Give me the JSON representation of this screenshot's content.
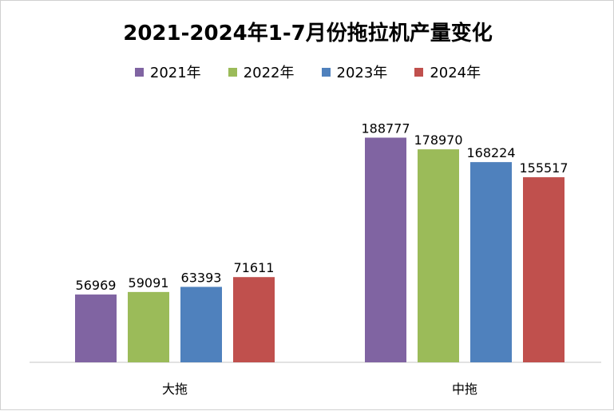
{
  "chart_data": {
    "type": "bar",
    "title": "2021-2024年1-7月份拖拉机产量变化",
    "categories": [
      "大拖",
      "中拖"
    ],
    "series": [
      {
        "name": "2021年",
        "color": "#8064a2",
        "values": [
          56969,
          188777
        ]
      },
      {
        "name": "2022年",
        "color": "#9bbb59",
        "values": [
          59091,
          178970
        ]
      },
      {
        "name": "2023年",
        "color": "#4f81bd",
        "values": [
          63393,
          168224
        ]
      },
      {
        "name": "2024年",
        "color": "#c0504d",
        "values": [
          71611,
          155517
        ]
      }
    ],
    "ylim": [
      0,
      230000
    ],
    "grid": false,
    "legend_position": "top"
  }
}
